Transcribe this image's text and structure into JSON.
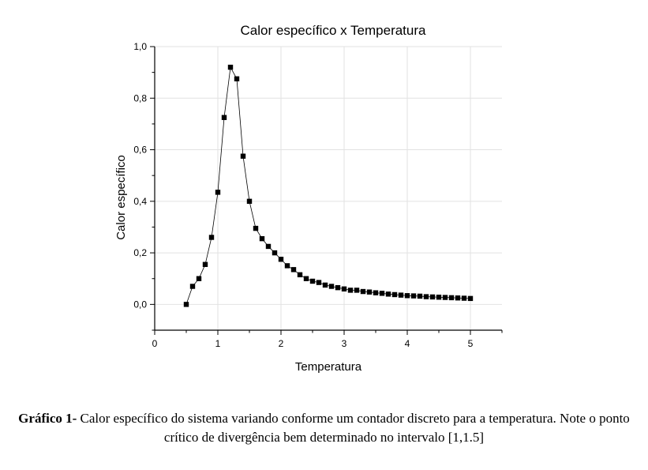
{
  "chart_data": {
    "type": "line",
    "title": "Calor específico x Temperatura",
    "xlabel": "Temperatura",
    "ylabel": "Calor específico",
    "xlim": [
      0,
      5.5
    ],
    "ylim": [
      -0.1,
      1.0
    ],
    "xticks": [
      0,
      1,
      2,
      3,
      4,
      5
    ],
    "xtick_labels": [
      "0",
      "1",
      "2",
      "3",
      "4",
      "5"
    ],
    "yticks": [
      0.0,
      0.2,
      0.4,
      0.6,
      0.8,
      1.0
    ],
    "ytick_labels": [
      "0,0",
      "0,2",
      "0,4",
      "0,6",
      "0,8",
      "1,0"
    ],
    "grid": true,
    "marker": "square",
    "color": "#000000",
    "series": [
      {
        "x": [
          0.5,
          0.6,
          0.7,
          0.8,
          0.9,
          1.0,
          1.1,
          1.2,
          1.3,
          1.4,
          1.5,
          1.6,
          1.7,
          1.8,
          1.9,
          2.0,
          2.1,
          2.2,
          2.3,
          2.4,
          2.5,
          2.6,
          2.7,
          2.8,
          2.9,
          3.0,
          3.1,
          3.2,
          3.3,
          3.4,
          3.5,
          3.6,
          3.7,
          3.8,
          3.9,
          4.0,
          4.1,
          4.2,
          4.3,
          4.4,
          4.5,
          4.6,
          4.7,
          4.8,
          4.9,
          5.0
        ],
        "y": [
          0.0,
          0.07,
          0.1,
          0.155,
          0.26,
          0.435,
          0.725,
          0.92,
          0.875,
          0.575,
          0.4,
          0.295,
          0.255,
          0.225,
          0.2,
          0.175,
          0.15,
          0.135,
          0.115,
          0.1,
          0.09,
          0.085,
          0.075,
          0.07,
          0.065,
          0.06,
          0.055,
          0.055,
          0.05,
          0.048,
          0.045,
          0.043,
          0.04,
          0.038,
          0.036,
          0.034,
          0.033,
          0.032,
          0.03,
          0.029,
          0.028,
          0.027,
          0.026,
          0.025,
          0.024,
          0.023
        ]
      }
    ]
  },
  "caption": {
    "label": "Gráfico 1-",
    "text": " Calor específico do sistema variando conforme um contador discreto para a temperatura. Note o ponto crítico de divergência bem determinado no intervalo [1,1.5]"
  }
}
